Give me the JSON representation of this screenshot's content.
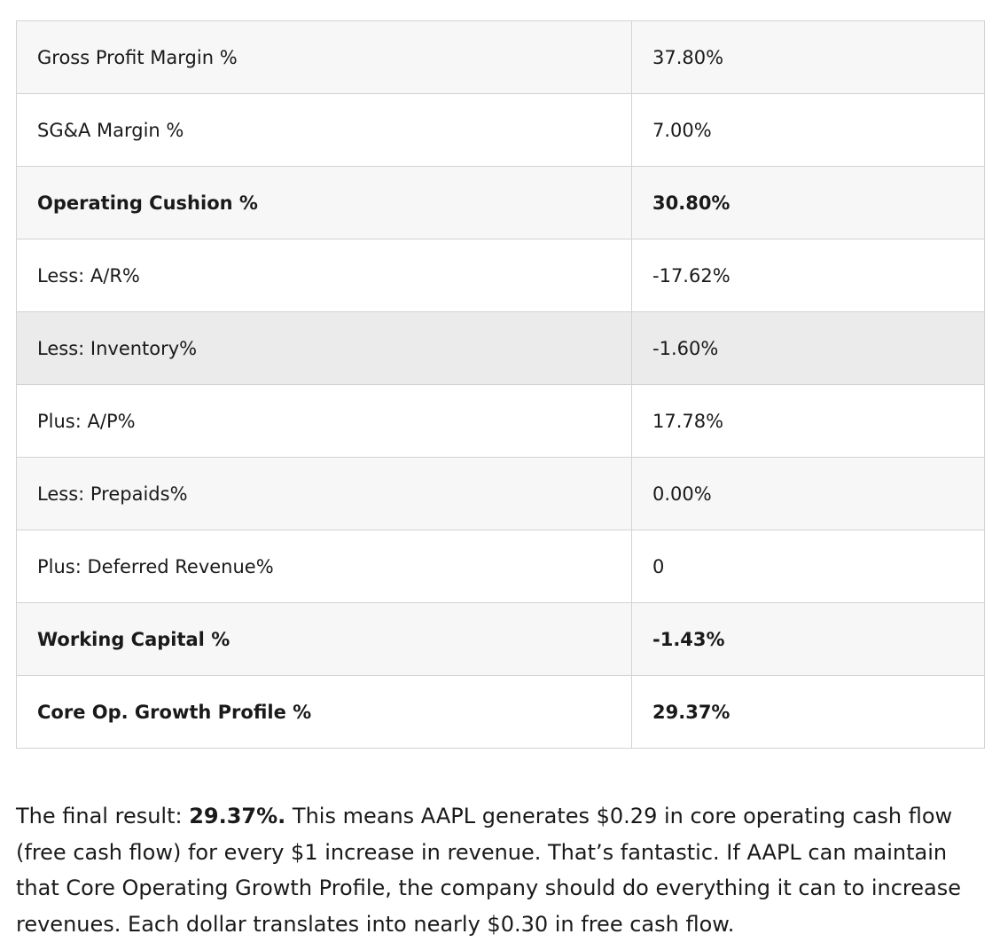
{
  "table": {
    "rows": [
      {
        "label": "Gross Profit Margin %",
        "value": "37.80%",
        "bold": false,
        "shade": "light"
      },
      {
        "label": "SG&A Margin %",
        "value": "7.00%",
        "bold": false,
        "shade": "white"
      },
      {
        "label": "Operating Cushion %",
        "value": "30.80%",
        "bold": true,
        "shade": "light"
      },
      {
        "label": "Less: A/R%",
        "value": "-17.62%",
        "bold": false,
        "shade": "white"
      },
      {
        "label": "Less: Inventory%",
        "value": "-1.60%",
        "bold": false,
        "shade": "dark"
      },
      {
        "label": "Plus: A/P%",
        "value": "17.78%",
        "bold": false,
        "shade": "white"
      },
      {
        "label": "Less: Prepaids%",
        "value": "0.00%",
        "bold": false,
        "shade": "light"
      },
      {
        "label": "Plus: Deferred Revenue%",
        "value": "0",
        "bold": false,
        "shade": "white"
      },
      {
        "label": "Working Capital %",
        "value": "-1.43%",
        "bold": true,
        "shade": "light"
      },
      {
        "label": "Core Op. Growth Profile %",
        "value": "29.37%",
        "bold": true,
        "shade": "white"
      }
    ]
  },
  "summary": {
    "intro": "The final result: ",
    "highlight": "29.37%.",
    "body": " This means AAPL generates $0.29 in core operating cash flow (free cash flow) for every $1 increase in revenue. That’s fantastic. If AAPL can maintain that Core Operating Growth Profile, the company should do everything it can to increase revenues. Each dollar translates into nearly $0.30 in free cash flow."
  }
}
